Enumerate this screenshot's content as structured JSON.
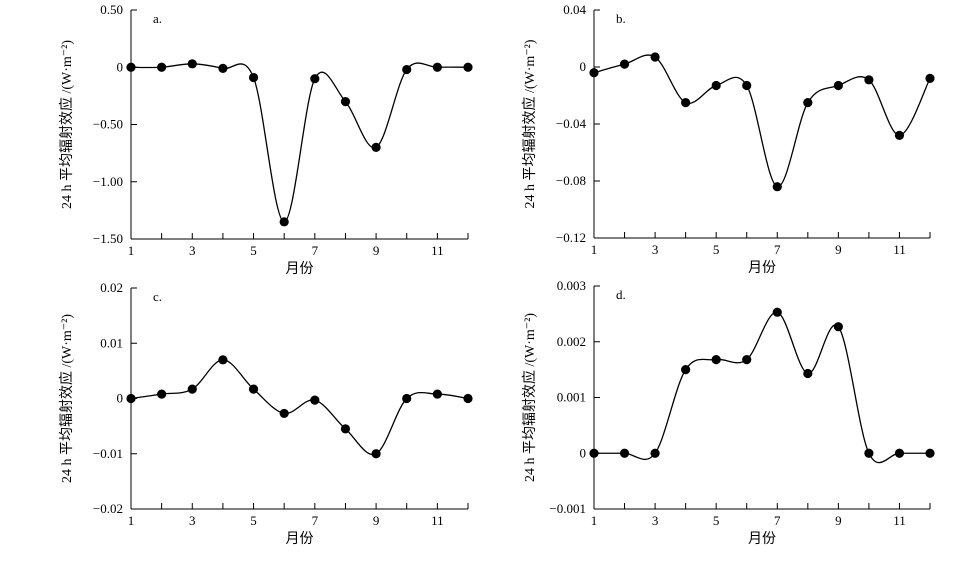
{
  "chart_data": [
    {
      "type": "line",
      "panel_label": "a.",
      "ylabel": "24 h 平均辐射效应 /(W·m⁻²)",
      "xlabel": "月份",
      "xlim": [
        1,
        12
      ],
      "ylim": [
        -1.5,
        0.5
      ],
      "xticks": [
        1,
        3,
        5,
        7,
        9,
        11
      ],
      "xtick_labels": [
        "1",
        "3",
        "5",
        "7",
        "9",
        "11"
      ],
      "yticks": [
        0.5,
        0,
        -0.5,
        -1.0,
        -1.5
      ],
      "ytick_labels": [
        "0.50",
        "0",
        "−0.50",
        "−1.00",
        "−1.50"
      ],
      "x": [
        1,
        2,
        3,
        4,
        5,
        6,
        7,
        8,
        9,
        10,
        11,
        12
      ],
      "y": [
        0,
        0,
        0.03,
        -0.01,
        -0.09,
        -1.35,
        -0.1,
        -0.3,
        -0.7,
        -0.02,
        0,
        0
      ]
    },
    {
      "type": "line",
      "panel_label": "b.",
      "ylabel": "24 h 平均辐射效应 /(W·m⁻²)",
      "xlabel": "月份",
      "xlim": [
        1,
        12
      ],
      "ylim": [
        -0.12,
        0.04
      ],
      "xticks": [
        1,
        3,
        5,
        7,
        9,
        11
      ],
      "xtick_labels": [
        "1",
        "3",
        "5",
        "7",
        "9",
        "11"
      ],
      "yticks": [
        0.04,
        0,
        -0.04,
        -0.08,
        -0.12
      ],
      "ytick_labels": [
        "0.04",
        "0",
        "−0.04",
        "−0.08",
        "−0.12"
      ],
      "x": [
        1,
        2,
        3,
        4,
        5,
        6,
        7,
        8,
        9,
        10,
        11,
        12
      ],
      "y": [
        -0.004,
        0.002,
        0.007,
        -0.025,
        -0.013,
        -0.013,
        -0.084,
        -0.025,
        -0.013,
        -0.009,
        -0.048,
        -0.008
      ]
    },
    {
      "type": "line",
      "panel_label": "c.",
      "ylabel": "24 h 平均辐射效应 /(W·m⁻²)",
      "xlabel": "月份",
      "xlim": [
        1,
        12
      ],
      "ylim": [
        -0.02,
        0.02
      ],
      "xticks": [
        1,
        3,
        5,
        7,
        9,
        11
      ],
      "xtick_labels": [
        "1",
        "3",
        "5",
        "7",
        "9",
        "11"
      ],
      "yticks": [
        0.02,
        0.01,
        0,
        -0.01,
        -0.02
      ],
      "ytick_labels": [
        "0.02",
        "0.01",
        "0",
        "−0.01",
        "−0.02"
      ],
      "x": [
        1,
        2,
        3,
        4,
        5,
        6,
        7,
        8,
        9,
        10,
        11,
        12
      ],
      "y": [
        0,
        0.0008,
        0.0017,
        0.007,
        0.0017,
        -0.0027,
        -0.0003,
        -0.0055,
        -0.01,
        0,
        0.0008,
        0
      ]
    },
    {
      "type": "line",
      "panel_label": "d.",
      "ylabel": "24 h 平均辐射效应 /(W·m⁻²)",
      "xlabel": "月份",
      "xlim": [
        1,
        12
      ],
      "ylim": [
        -0.001,
        0.003
      ],
      "xticks": [
        1,
        3,
        5,
        7,
        9,
        11
      ],
      "xtick_labels": [
        "1",
        "3",
        "5",
        "7",
        "9",
        "11"
      ],
      "yticks": [
        0.003,
        0.002,
        0.001,
        0,
        -0.001
      ],
      "ytick_labels": [
        "0.003",
        "0.002",
        "0.001",
        "0",
        "−0.001"
      ],
      "x": [
        1,
        2,
        3,
        4,
        5,
        6,
        7,
        8,
        9,
        10,
        11,
        12
      ],
      "y": [
        0,
        0,
        0,
        0.0015,
        0.00168,
        0.00168,
        0.00253,
        0.00143,
        0.00227,
        0,
        0,
        0
      ]
    }
  ]
}
